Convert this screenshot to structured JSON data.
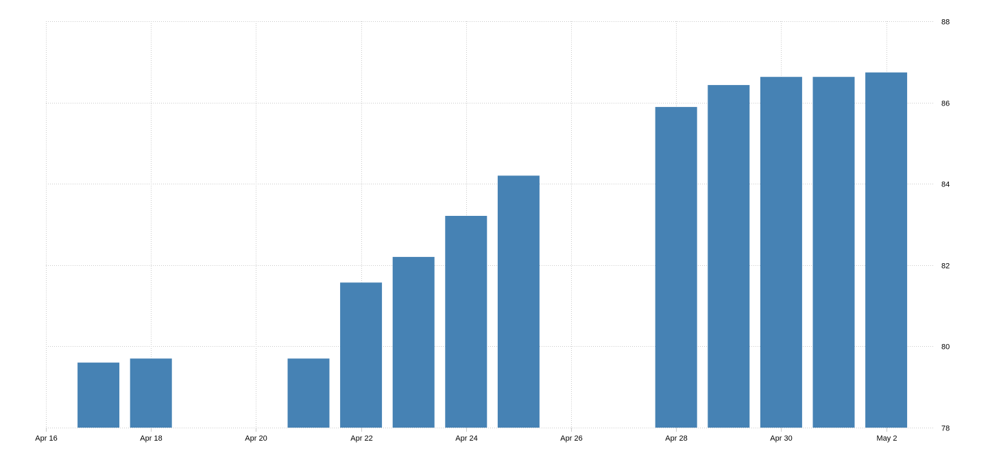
{
  "chart_data": {
    "type": "bar",
    "title": "",
    "xlabel": "",
    "ylabel": "",
    "ylim": [
      78,
      88
    ],
    "grid": true,
    "legend": "none",
    "y_axis_position": "right",
    "bar_color": "#4682b4",
    "grid_color": "#c8c8c8",
    "x_ticks": [
      "Apr 16",
      "Apr 18",
      "Apr 20",
      "Apr 22",
      "Apr 24",
      "Apr 26",
      "Apr 28",
      "Apr 30",
      "May 2"
    ],
    "y_ticks": [
      78,
      80,
      82,
      84,
      86,
      88
    ],
    "categories": [
      "Apr 17",
      "Apr 18",
      "Apr 21",
      "Apr 22",
      "Apr 23",
      "Apr 24",
      "Apr 25",
      "Apr 28",
      "Apr 29",
      "Apr 30",
      "May 1",
      "May 2"
    ],
    "day_offsets": [
      1,
      2,
      5,
      6,
      7,
      8,
      9,
      12,
      13,
      14,
      15,
      16
    ],
    "values": [
      79.6,
      79.7,
      79.7,
      81.57,
      82.2,
      83.21,
      84.2,
      85.89,
      86.43,
      86.63,
      86.63,
      86.74
    ]
  }
}
